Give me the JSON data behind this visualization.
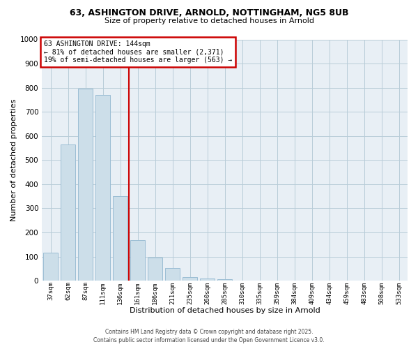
{
  "title1": "63, ASHINGTON DRIVE, ARNOLD, NOTTINGHAM, NG5 8UB",
  "title2": "Size of property relative to detached houses in Arnold",
  "xlabel": "Distribution of detached houses by size in Arnold",
  "ylabel": "Number of detached properties",
  "bar_labels": [
    "37sqm",
    "62sqm",
    "87sqm",
    "111sqm",
    "136sqm",
    "161sqm",
    "186sqm",
    "211sqm",
    "235sqm",
    "260sqm",
    "285sqm",
    "310sqm",
    "335sqm",
    "359sqm",
    "384sqm",
    "409sqm",
    "434sqm",
    "459sqm",
    "483sqm",
    "508sqm",
    "533sqm"
  ],
  "bar_values": [
    115,
    565,
    795,
    770,
    350,
    168,
    97,
    54,
    15,
    8,
    5,
    2,
    0,
    0,
    0,
    0,
    0,
    0,
    0,
    0,
    0
  ],
  "bar_color": "#ccdee9",
  "bar_edge_color": "#9bbdd4",
  "vline_x": 4.5,
  "vline_color": "#cc0000",
  "ylim": [
    0,
    1000
  ],
  "yticks": [
    0,
    100,
    200,
    300,
    400,
    500,
    600,
    700,
    800,
    900,
    1000
  ],
  "annotation_title": "63 ASHINGTON DRIVE: 144sqm",
  "annotation_line1": "← 81% of detached houses are smaller (2,371)",
  "annotation_line2": "19% of semi-detached houses are larger (563) →",
  "annotation_box_color": "#ffffff",
  "annotation_box_edge_color": "#cc0000",
  "footer1": "Contains HM Land Registry data © Crown copyright and database right 2025.",
  "footer2": "Contains public sector information licensed under the Open Government Licence v3.0.",
  "bg_color": "#ffffff",
  "plot_bg_color": "#e8eff5",
  "grid_color": "#b8ccd8"
}
